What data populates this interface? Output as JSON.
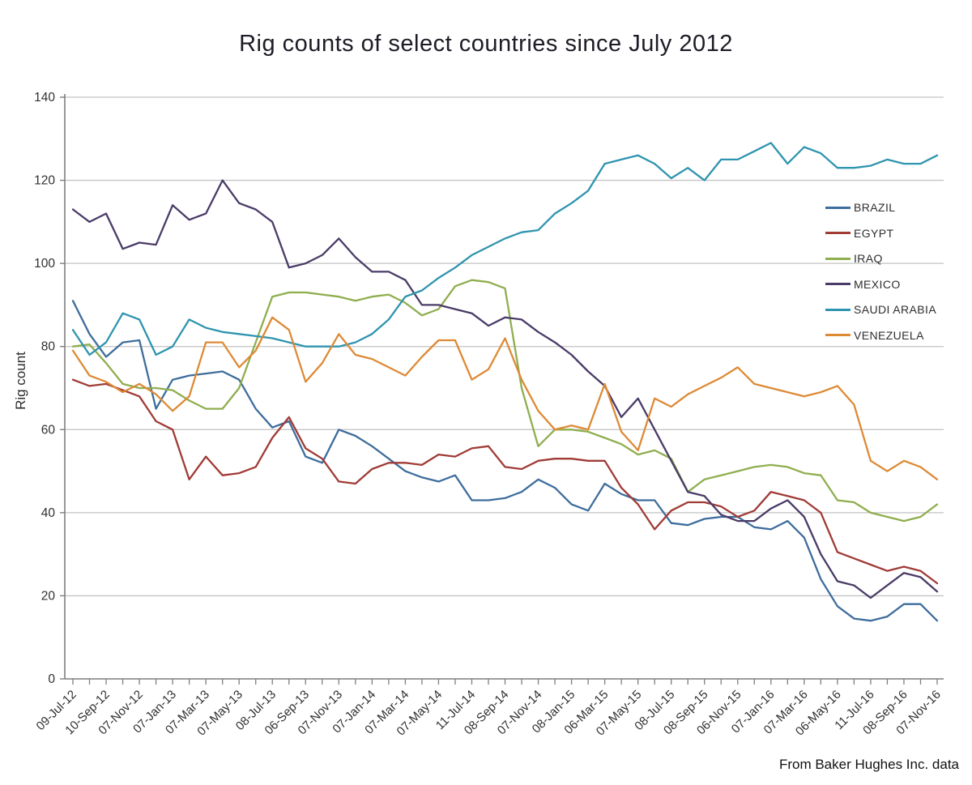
{
  "title": "Rig counts of select countries since July 2012",
  "footer": "From Baker Hughes Inc. data",
  "colors": {
    "gridline": "#c3c3c3",
    "axis": "#7f7f7f",
    "tick_text": "#303030",
    "title_text": "#1c1c26"
  },
  "chart_data": {
    "type": "line",
    "title": "Rig counts of select countries since July 2012",
    "xlabel": "",
    "ylabel": "Rig count",
    "ylim": [
      0,
      140
    ],
    "y_ticks": [
      0,
      20,
      40,
      60,
      80,
      100,
      120,
      140
    ],
    "grid": "horizontal",
    "legend_position": "right",
    "points_per_series": 53,
    "x_labels_every_n_points": 2,
    "x_tick_labels": [
      "09-Jul-12",
      "10-Sep-12",
      "07-Nov-12",
      "07-Jan-13",
      "07-Mar-13",
      "07-May-13",
      "08-Jul-13",
      "06-Sep-13",
      "07-Nov-13",
      "07-Jan-14",
      "07-Mar-14",
      "07-May-14",
      "11-Jul-14",
      "08-Sep-14",
      "07-Nov-14",
      "08-Jan-15",
      "06-Mar-15",
      "07-May-15",
      "08-Jul-15",
      "08-Sep-15",
      "06-Nov-15",
      "07-Jan-16",
      "07-Mar-16",
      "06-May-16",
      "11-Jul-16",
      "08-Sep-16",
      "07-Nov-16"
    ],
    "series": [
      {
        "name": "BRAZIL",
        "color": "#3e6d9c",
        "values": [
          91,
          83,
          77.5,
          81,
          81.5,
          65,
          72,
          73,
          73.5,
          74,
          72,
          65,
          60.5,
          62,
          53.5,
          52,
          60,
          58.5,
          56,
          53,
          50,
          48.5,
          47.5,
          49,
          43,
          43,
          43.5,
          45,
          48,
          46,
          42,
          40.5,
          47,
          44.5,
          43,
          43,
          37.5,
          37,
          38.5,
          39,
          39,
          36.5,
          36,
          38,
          34,
          24,
          17.5,
          14.5,
          14,
          15,
          18,
          18,
          14
        ]
      },
      {
        "name": "EGYPT",
        "color": "#a03b36",
        "values": [
          72,
          70.5,
          71,
          69.5,
          68,
          62,
          60,
          48,
          53.5,
          49,
          49.5,
          51,
          58,
          63,
          55.5,
          53,
          47.5,
          47,
          50.5,
          52,
          52,
          51.5,
          54,
          53.5,
          55.5,
          56,
          51,
          50.5,
          52.5,
          53,
          53,
          52.5,
          52.5,
          46,
          42,
          36,
          40.5,
          42.5,
          42.5,
          41.5,
          39,
          40.5,
          45,
          44,
          43,
          40,
          30.5,
          29,
          27.5,
          26,
          27,
          26,
          23
        ]
      },
      {
        "name": "IRAQ",
        "color": "#8fae4e",
        "values": [
          80,
          80.5,
          76,
          71,
          70,
          70,
          69.5,
          67,
          65,
          65,
          70,
          81,
          92,
          93,
          93,
          92.5,
          92,
          91,
          92,
          92.5,
          90.5,
          87.5,
          89,
          94.5,
          96,
          95.5,
          94,
          70,
          56,
          60,
          60,
          59.5,
          58,
          56.5,
          54,
          55,
          53,
          45,
          48,
          49,
          50,
          51,
          51.5,
          51,
          49.5,
          49,
          43,
          42.5,
          40,
          39,
          38,
          39,
          42
        ]
      },
      {
        "name": "MEXICO",
        "color": "#4a3b68",
        "values": [
          113,
          110,
          112,
          103.5,
          105,
          104.5,
          114,
          110.5,
          112,
          120,
          114.5,
          113,
          110,
          99,
          100,
          102,
          106,
          101.5,
          98,
          98,
          96,
          90,
          90,
          89,
          88,
          85,
          87,
          86.5,
          83.5,
          81,
          78,
          74,
          70.5,
          63,
          67.5,
          60,
          52.5,
          45,
          44,
          39.5,
          38,
          38,
          41,
          43,
          39,
          30,
          23.5,
          22.5,
          19.5,
          22.5,
          25.5,
          24.5,
          21
        ]
      },
      {
        "name": "SAUDI ARABIA",
        "color": "#2e94af",
        "values": [
          84,
          78,
          81,
          88,
          86.5,
          78,
          80,
          86.5,
          84.5,
          83.5,
          83,
          82.5,
          82,
          81,
          80,
          80,
          80,
          81,
          83,
          86.5,
          92,
          93.5,
          96.5,
          99,
          102,
          104,
          106,
          107.5,
          108,
          112,
          114.5,
          117.5,
          124,
          125,
          126,
          124,
          120.5,
          123,
          120,
          125,
          125,
          127,
          129,
          124,
          128,
          126.5,
          123,
          123,
          123.5,
          125,
          124,
          124,
          126
        ]
      },
      {
        "name": "VENEZUELA",
        "color": "#dd8a35",
        "values": [
          79,
          73,
          71.5,
          69,
          71,
          68.5,
          64.5,
          68,
          81,
          81,
          75,
          79,
          87,
          84,
          71.5,
          76,
          83,
          78,
          77,
          75,
          73,
          77.5,
          81.5,
          81.5,
          72,
          74.5,
          82,
          72,
          64.5,
          60,
          61,
          60,
          71,
          59.5,
          55,
          67.5,
          65.5,
          68.5,
          70.5,
          72.5,
          75,
          71,
          70,
          69,
          68,
          69,
          70.5,
          66,
          52.5,
          50,
          52.5,
          51,
          48
        ]
      }
    ]
  }
}
